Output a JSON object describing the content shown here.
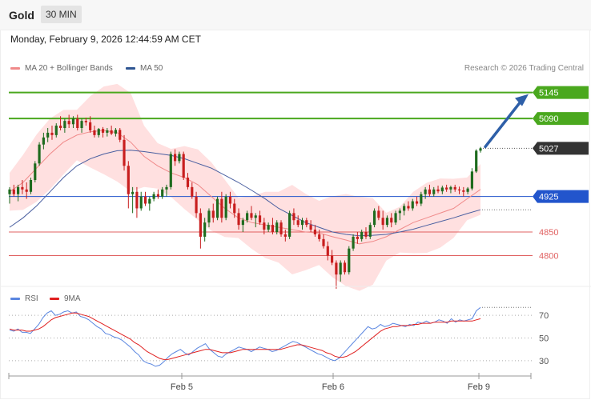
{
  "header": {
    "instrument": "Gold",
    "timeframe": "30 MIN"
  },
  "timestamp": "Monday, February 9, 2026 12:44:59 AM CET",
  "legend": {
    "ma20": "MA 20 + Bollinger Bands",
    "ma50": "MA 50",
    "credit": "Research © 2026 Trading Central"
  },
  "rsi_legend": {
    "rsi": "RSI",
    "ma9": "9MA"
  },
  "colors": {
    "up": "#1e6b1e",
    "down": "#c81e1e",
    "band": "#ffd6d6",
    "ma20": "#f08a8a",
    "ma50": "#4a5fa0",
    "resistance": "#4aa81e",
    "support_blue": "#2255cc",
    "support_red": "#e06060",
    "rsi": "#5a86e0",
    "rsi_ma": "#e02020",
    "arrow": "#2e5fa8",
    "current": "#333333"
  },
  "chart_data": [
    {
      "type": "candlestick",
      "title": "",
      "ylim": [
        4740,
        5180
      ],
      "x_ticks": [
        "Feb 5",
        "Feb 6",
        "Feb 9"
      ],
      "levels": [
        {
          "label": "5145",
          "value": 5145,
          "kind": "resistance"
        },
        {
          "label": "5090",
          "value": 5090,
          "kind": "resistance"
        },
        {
          "label": "5027",
          "value": 5027,
          "kind": "current"
        },
        {
          "label": "4925",
          "value": 4925,
          "kind": "pivot"
        },
        {
          "label": "4850",
          "value": 4850,
          "kind": "support"
        },
        {
          "label": "4800",
          "value": 4800,
          "kind": "support"
        }
      ],
      "series": [
        {
          "name": "MA 20 + Bollinger Bands",
          "values": [
            4935,
            4955,
            4985,
            5015,
            5040,
            5055,
            5062,
            5065,
            5060,
            5040,
            5010,
            4990,
            4975,
            4965,
            4950,
            4925,
            4900,
            4880,
            4870,
            4865,
            4860,
            4855,
            4850,
            4848,
            4840,
            4833,
            4825,
            4830,
            4840,
            4855,
            4870,
            4880,
            4890,
            4900,
            4920,
            4940
          ]
        },
        {
          "name": "MA 50",
          "values": [
            4860,
            4880,
            4905,
            4935,
            4965,
            4990,
            5005,
            5015,
            5022,
            5023,
            5020,
            5016,
            5012,
            5005,
            4995,
            4985,
            4970,
            4955,
            4938,
            4920,
            4900,
            4885,
            4870,
            4860,
            4850,
            4845,
            4842,
            4843,
            4845,
            4850,
            4856,
            4864,
            4872,
            4880,
            4889,
            4897
          ]
        }
      ],
      "candles": [
        {
          "o": 4930,
          "h": 4945,
          "l": 4910,
          "c": 4940
        },
        {
          "o": 4940,
          "h": 4950,
          "l": 4925,
          "c": 4930
        },
        {
          "o": 4930,
          "h": 4950,
          "l": 4915,
          "c": 4945
        },
        {
          "o": 4945,
          "h": 4960,
          "l": 4930,
          "c": 4940
        },
        {
          "o": 4940,
          "h": 4955,
          "l": 4920,
          "c": 4935
        },
        {
          "o": 4935,
          "h": 4965,
          "l": 4930,
          "c": 4960
        },
        {
          "o": 4960,
          "h": 5000,
          "l": 4955,
          "c": 4995
        },
        {
          "o": 4995,
          "h": 5040,
          "l": 4990,
          "c": 5035
        },
        {
          "o": 5035,
          "h": 5060,
          "l": 5025,
          "c": 5050
        },
        {
          "o": 5050,
          "h": 5070,
          "l": 5040,
          "c": 5060
        },
        {
          "o": 5060,
          "h": 5075,
          "l": 5045,
          "c": 5055
        },
        {
          "o": 5055,
          "h": 5080,
          "l": 5050,
          "c": 5075
        },
        {
          "o": 5075,
          "h": 5095,
          "l": 5065,
          "c": 5070
        },
        {
          "o": 5070,
          "h": 5090,
          "l": 5060,
          "c": 5085
        },
        {
          "o": 5085,
          "h": 5098,
          "l": 5070,
          "c": 5078
        },
        {
          "o": 5078,
          "h": 5095,
          "l": 5070,
          "c": 5090
        },
        {
          "o": 5090,
          "h": 5098,
          "l": 5065,
          "c": 5070
        },
        {
          "o": 5070,
          "h": 5090,
          "l": 5060,
          "c": 5085
        },
        {
          "o": 5085,
          "h": 5092,
          "l": 5075,
          "c": 5082
        },
        {
          "o": 5082,
          "h": 5095,
          "l": 5060,
          "c": 5065
        },
        {
          "o": 5065,
          "h": 5075,
          "l": 5050,
          "c": 5055
        },
        {
          "o": 5055,
          "h": 5070,
          "l": 5050,
          "c": 5068
        },
        {
          "o": 5068,
          "h": 5072,
          "l": 5050,
          "c": 5060
        },
        {
          "o": 5060,
          "h": 5070,
          "l": 5052,
          "c": 5065
        },
        {
          "o": 5065,
          "h": 5075,
          "l": 5055,
          "c": 5058
        },
        {
          "o": 5058,
          "h": 5070,
          "l": 5052,
          "c": 5066
        },
        {
          "o": 5066,
          "h": 5070,
          "l": 5040,
          "c": 5045
        },
        {
          "o": 5045,
          "h": 5055,
          "l": 4980,
          "c": 4990
        },
        {
          "o": 4990,
          "h": 5000,
          "l": 4900,
          "c": 4930
        },
        {
          "o": 4930,
          "h": 4945,
          "l": 4890,
          "c": 4935
        },
        {
          "o": 4935,
          "h": 4945,
          "l": 4880,
          "c": 4900
        },
        {
          "o": 4900,
          "h": 4935,
          "l": 4895,
          "c": 4925
        },
        {
          "o": 4925,
          "h": 4935,
          "l": 4905,
          "c": 4910
        },
        {
          "o": 4910,
          "h": 4925,
          "l": 4895,
          "c": 4920
        },
        {
          "o": 4920,
          "h": 4935,
          "l": 4915,
          "c": 4930
        },
        {
          "o": 4930,
          "h": 4940,
          "l": 4920,
          "c": 4925
        },
        {
          "o": 4925,
          "h": 4945,
          "l": 4920,
          "c": 4940
        },
        {
          "o": 4940,
          "h": 4950,
          "l": 4925,
          "c": 4945
        },
        {
          "o": 4945,
          "h": 5020,
          "l": 4940,
          "c": 5015
        },
        {
          "o": 5015,
          "h": 5025,
          "l": 4990,
          "c": 5000
        },
        {
          "o": 5000,
          "h": 5020,
          "l": 4995,
          "c": 5015
        },
        {
          "o": 5015,
          "h": 5020,
          "l": 4960,
          "c": 4965
        },
        {
          "o": 4965,
          "h": 4975,
          "l": 4940,
          "c": 4945
        },
        {
          "o": 4945,
          "h": 4955,
          "l": 4920,
          "c": 4925
        },
        {
          "o": 4925,
          "h": 4935,
          "l": 4880,
          "c": 4890
        },
        {
          "o": 4890,
          "h": 4900,
          "l": 4815,
          "c": 4840
        },
        {
          "o": 4840,
          "h": 4880,
          "l": 4830,
          "c": 4870
        },
        {
          "o": 4870,
          "h": 4900,
          "l": 4860,
          "c": 4895
        },
        {
          "o": 4895,
          "h": 4910,
          "l": 4870,
          "c": 4880
        },
        {
          "o": 4880,
          "h": 4925,
          "l": 4875,
          "c": 4920
        },
        {
          "o": 4920,
          "h": 4935,
          "l": 4870,
          "c": 4880
        },
        {
          "o": 4880,
          "h": 4930,
          "l": 4875,
          "c": 4925
        },
        {
          "o": 4925,
          "h": 4935,
          "l": 4900,
          "c": 4910
        },
        {
          "o": 4910,
          "h": 4920,
          "l": 4880,
          "c": 4890
        },
        {
          "o": 4890,
          "h": 4900,
          "l": 4855,
          "c": 4865
        },
        {
          "o": 4865,
          "h": 4880,
          "l": 4850,
          "c": 4875
        },
        {
          "o": 4875,
          "h": 4895,
          "l": 4870,
          "c": 4890
        },
        {
          "o": 4890,
          "h": 4905,
          "l": 4875,
          "c": 4880
        },
        {
          "o": 4880,
          "h": 4890,
          "l": 4860,
          "c": 4885
        },
        {
          "o": 4885,
          "h": 4895,
          "l": 4865,
          "c": 4870
        },
        {
          "o": 4870,
          "h": 4880,
          "l": 4845,
          "c": 4855
        },
        {
          "o": 4855,
          "h": 4870,
          "l": 4850,
          "c": 4865
        },
        {
          "o": 4865,
          "h": 4880,
          "l": 4845,
          "c": 4850
        },
        {
          "o": 4850,
          "h": 4875,
          "l": 4845,
          "c": 4870
        },
        {
          "o": 4870,
          "h": 4875,
          "l": 4840,
          "c": 4845
        },
        {
          "o": 4845,
          "h": 4855,
          "l": 4830,
          "c": 4840
        },
        {
          "o": 4840,
          "h": 4895,
          "l": 4835,
          "c": 4890
        },
        {
          "o": 4890,
          "h": 4900,
          "l": 4865,
          "c": 4875
        },
        {
          "o": 4875,
          "h": 4885,
          "l": 4860,
          "c": 4865
        },
        {
          "o": 4865,
          "h": 4880,
          "l": 4855,
          "c": 4875
        },
        {
          "o": 4875,
          "h": 4880,
          "l": 4860,
          "c": 4865
        },
        {
          "o": 4865,
          "h": 4875,
          "l": 4850,
          "c": 4855
        },
        {
          "o": 4855,
          "h": 4865,
          "l": 4840,
          "c": 4845
        },
        {
          "o": 4845,
          "h": 4855,
          "l": 4830,
          "c": 4835
        },
        {
          "o": 4835,
          "h": 4845,
          "l": 4815,
          "c": 4820
        },
        {
          "o": 4820,
          "h": 4830,
          "l": 4790,
          "c": 4800
        },
        {
          "o": 4800,
          "h": 4812,
          "l": 4780,
          "c": 4785
        },
        {
          "o": 4785,
          "h": 4790,
          "l": 4730,
          "c": 4760
        },
        {
          "o": 4760,
          "h": 4790,
          "l": 4745,
          "c": 4785
        },
        {
          "o": 4785,
          "h": 4790,
          "l": 4760,
          "c": 4765
        },
        {
          "o": 4765,
          "h": 4820,
          "l": 4760,
          "c": 4815
        },
        {
          "o": 4815,
          "h": 4845,
          "l": 4810,
          "c": 4840
        },
        {
          "o": 4840,
          "h": 4850,
          "l": 4825,
          "c": 4835
        },
        {
          "o": 4835,
          "h": 4855,
          "l": 4830,
          "c": 4850
        },
        {
          "o": 4850,
          "h": 4860,
          "l": 4835,
          "c": 4840
        },
        {
          "o": 4840,
          "h": 4870,
          "l": 4835,
          "c": 4865
        },
        {
          "o": 4865,
          "h": 4900,
          "l": 4860,
          "c": 4895
        },
        {
          "o": 4895,
          "h": 4905,
          "l": 4875,
          "c": 4880
        },
        {
          "o": 4880,
          "h": 4895,
          "l": 4855,
          "c": 4865
        },
        {
          "o": 4865,
          "h": 4885,
          "l": 4860,
          "c": 4880
        },
        {
          "o": 4880,
          "h": 4890,
          "l": 4860,
          "c": 4870
        },
        {
          "o": 4870,
          "h": 4895,
          "l": 4865,
          "c": 4890
        },
        {
          "o": 4890,
          "h": 4900,
          "l": 4875,
          "c": 4895
        },
        {
          "o": 4895,
          "h": 4910,
          "l": 4885,
          "c": 4905
        },
        {
          "o": 4905,
          "h": 4915,
          "l": 4895,
          "c": 4900
        },
        {
          "o": 4900,
          "h": 4920,
          "l": 4895,
          "c": 4915
        },
        {
          "o": 4915,
          "h": 4925,
          "l": 4905,
          "c": 4910
        },
        {
          "o": 4910,
          "h": 4935,
          "l": 4905,
          "c": 4930
        },
        {
          "o": 4930,
          "h": 4945,
          "l": 4920,
          "c": 4940
        },
        {
          "o": 4940,
          "h": 4950,
          "l": 4925,
          "c": 4930
        },
        {
          "o": 4930,
          "h": 4945,
          "l": 4925,
          "c": 4940
        },
        {
          "o": 4940,
          "h": 4948,
          "l": 4932,
          "c": 4936
        },
        {
          "o": 4936,
          "h": 4948,
          "l": 4930,
          "c": 4944
        },
        {
          "o": 4944,
          "h": 4950,
          "l": 4935,
          "c": 4940
        },
        {
          "o": 4940,
          "h": 4948,
          "l": 4932,
          "c": 4945
        },
        {
          "o": 4945,
          "h": 4950,
          "l": 4935,
          "c": 4940
        },
        {
          "o": 4940,
          "h": 4946,
          "l": 4930,
          "c": 4938
        },
        {
          "o": 4938,
          "h": 4945,
          "l": 4925,
          "c": 4935
        },
        {
          "o": 4935,
          "h": 4945,
          "l": 4930,
          "c": 4942
        },
        {
          "o": 4942,
          "h": 4985,
          "l": 4938,
          "c": 4978
        },
        {
          "o": 4978,
          "h": 5025,
          "l": 4975,
          "c": 5022
        },
        {
          "o": 5022,
          "h": 5030,
          "l": 5018,
          "c": 5027
        }
      ]
    },
    {
      "type": "line",
      "title": "",
      "ylim": [
        20,
        80
      ],
      "y_ticks": [
        70,
        50,
        30
      ],
      "series": [
        {
          "name": "RSI",
          "values": [
            57,
            56,
            58,
            55,
            55,
            54,
            58,
            62,
            68,
            72,
            74,
            70,
            71,
            73,
            74,
            72,
            73,
            69,
            68,
            66,
            63,
            60,
            58,
            54,
            53,
            51,
            50,
            48,
            45,
            42,
            38,
            35,
            30,
            28,
            27,
            25,
            26,
            29,
            33,
            36,
            38,
            40,
            37,
            35,
            38,
            41,
            43,
            45,
            40,
            37,
            34,
            33,
            36,
            38,
            40,
            42,
            41,
            40,
            38,
            40,
            42,
            41,
            40,
            38,
            39,
            41,
            43,
            45,
            47,
            46,
            44,
            42,
            40,
            38,
            36,
            35,
            33,
            31,
            30,
            32,
            36,
            40,
            44,
            48,
            52,
            56,
            60,
            58,
            59,
            62,
            60,
            61,
            63,
            62,
            61,
            60,
            62,
            61,
            64,
            63,
            65,
            63,
            64,
            66,
            65,
            63,
            67,
            64,
            66,
            65,
            66,
            67,
            74,
            77
          ]
        },
        {
          "name": "9MA",
          "values": [
            58,
            57,
            57,
            57,
            56,
            56,
            57,
            58,
            60,
            63,
            66,
            68,
            69,
            70,
            71,
            72,
            72,
            71,
            70,
            69,
            67,
            65,
            63,
            61,
            59,
            57,
            55,
            53,
            51,
            49,
            46,
            44,
            41,
            38,
            36,
            34,
            32,
            31,
            31,
            32,
            33,
            34,
            35,
            36,
            37,
            38,
            39,
            40,
            40,
            39,
            38,
            37,
            37,
            37,
            38,
            39,
            40,
            40,
            40,
            40,
            40,
            40,
            40,
            40,
            40,
            40,
            41,
            42,
            43,
            44,
            44,
            43,
            42,
            41,
            40,
            39,
            37,
            36,
            34,
            33,
            33,
            34,
            36,
            38,
            41,
            44,
            47,
            50,
            53,
            56,
            58,
            59,
            60,
            60,
            61,
            61,
            61,
            62,
            62,
            63,
            63,
            63,
            64,
            64,
            64,
            64,
            65,
            65,
            65,
            65,
            65,
            65,
            66,
            67
          ]
        }
      ]
    }
  ]
}
